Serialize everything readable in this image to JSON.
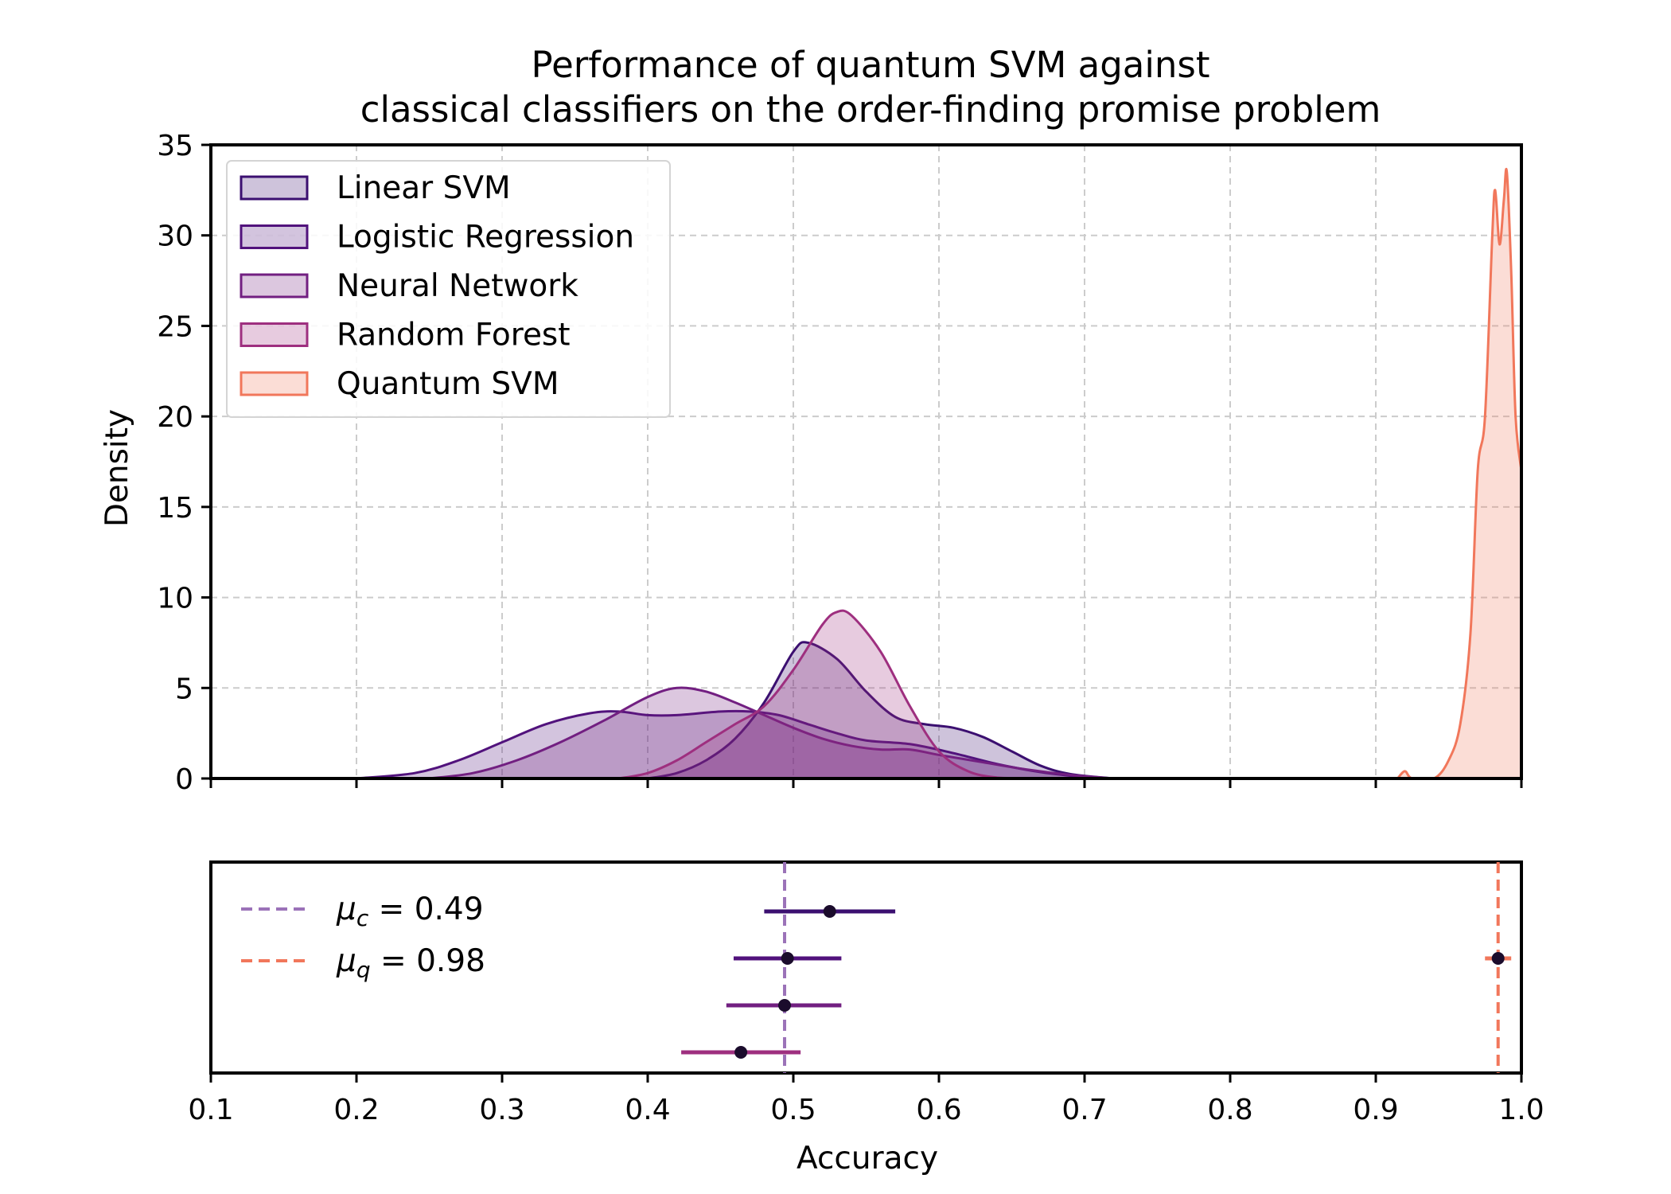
{
  "chart_data": [
    {
      "type": "area",
      "title_lines": [
        "Performance of quantum SVM against",
        "classical classifiers on the order-finding promise problem"
      ],
      "ylabel": "Density",
      "xlim": [
        0.1,
        1.0
      ],
      "ylim": [
        0,
        35
      ],
      "yticks": [
        "0",
        "5",
        "10",
        "15",
        "20",
        "25",
        "30",
        "35"
      ],
      "grid": true,
      "legend_position": "top-left",
      "series": [
        {
          "name": "Linear SVM",
          "color": "#3b0f70",
          "points": [
            [
              0.4,
              0
            ],
            [
              0.42,
              0.3
            ],
            [
              0.44,
              1.0
            ],
            [
              0.46,
              2.2
            ],
            [
              0.48,
              4.2
            ],
            [
              0.5,
              7.0
            ],
            [
              0.51,
              7.5
            ],
            [
              0.53,
              6.6
            ],
            [
              0.55,
              4.8
            ],
            [
              0.57,
              3.4
            ],
            [
              0.59,
              3.0
            ],
            [
              0.61,
              2.8
            ],
            [
              0.63,
              2.3
            ],
            [
              0.65,
              1.5
            ],
            [
              0.67,
              0.7
            ],
            [
              0.69,
              0.25
            ],
            [
              0.72,
              0
            ]
          ]
        },
        {
          "name": "Logistic Regression",
          "color": "#51127c",
          "points": [
            [
              0.2,
              0
            ],
            [
              0.24,
              0.3
            ],
            [
              0.27,
              1.0
            ],
            [
              0.3,
              2.0
            ],
            [
              0.33,
              3.0
            ],
            [
              0.36,
              3.6
            ],
            [
              0.38,
              3.7
            ],
            [
              0.4,
              3.5
            ],
            [
              0.42,
              3.5
            ],
            [
              0.45,
              3.7
            ],
            [
              0.47,
              3.7
            ],
            [
              0.49,
              3.5
            ],
            [
              0.51,
              3.0
            ],
            [
              0.53,
              2.5
            ],
            [
              0.55,
              2.1
            ],
            [
              0.58,
              1.9
            ],
            [
              0.61,
              1.4
            ],
            [
              0.64,
              0.8
            ],
            [
              0.67,
              0.35
            ],
            [
              0.7,
              0.08
            ],
            [
              0.72,
              0
            ]
          ]
        },
        {
          "name": "Neural Network",
          "color": "#721f81",
          "points": [
            [
              0.25,
              0
            ],
            [
              0.28,
              0.3
            ],
            [
              0.31,
              1.0
            ],
            [
              0.34,
              2.0
            ],
            [
              0.37,
              3.2
            ],
            [
              0.4,
              4.5
            ],
            [
              0.42,
              5.0
            ],
            [
              0.44,
              4.8
            ],
            [
              0.46,
              4.2
            ],
            [
              0.48,
              3.5
            ],
            [
              0.5,
              2.8
            ],
            [
              0.52,
              2.2
            ],
            [
              0.54,
              1.8
            ],
            [
              0.56,
              1.6
            ],
            [
              0.58,
              1.6
            ],
            [
              0.6,
              1.3
            ],
            [
              0.63,
              0.9
            ],
            [
              0.66,
              0.5
            ],
            [
              0.69,
              0.2
            ],
            [
              0.72,
              0
            ]
          ]
        },
        {
          "name": "Random Forest",
          "color": "#9e2f7f",
          "points": [
            [
              0.38,
              0
            ],
            [
              0.4,
              0.3
            ],
            [
              0.42,
              1.0
            ],
            [
              0.44,
              2.0
            ],
            [
              0.46,
              3.0
            ],
            [
              0.48,
              4.0
            ],
            [
              0.5,
              6.0
            ],
            [
              0.52,
              8.5
            ],
            [
              0.53,
              9.2
            ],
            [
              0.54,
              9.0
            ],
            [
              0.56,
              7.0
            ],
            [
              0.58,
              4.0
            ],
            [
              0.6,
              1.5
            ],
            [
              0.62,
              0.4
            ],
            [
              0.64,
              0.05
            ],
            [
              0.66,
              0
            ]
          ]
        },
        {
          "name": "Quantum SVM",
          "color": "#f1775b",
          "points": [
            [
              0.915,
              0
            ],
            [
              0.92,
              0.4
            ],
            [
              0.925,
              0
            ],
            [
              0.94,
              0
            ],
            [
              0.95,
              1.0
            ],
            [
              0.958,
              3.0
            ],
            [
              0.965,
              8.0
            ],
            [
              0.97,
              17.0
            ],
            [
              0.975,
              20.0
            ],
            [
              0.98,
              30.0
            ],
            [
              0.982,
              32.5
            ],
            [
              0.985,
              29.5
            ],
            [
              0.988,
              32.0
            ],
            [
              0.99,
              33.5
            ],
            [
              0.993,
              28.0
            ],
            [
              0.996,
              20.0
            ],
            [
              1.0,
              17.0
            ]
          ]
        }
      ]
    },
    {
      "type": "scatter",
      "subtype": "errorbar",
      "xlabel": "Accuracy",
      "xlim": [
        0.1,
        1.0
      ],
      "xticks": [
        "0.1",
        "0.2",
        "0.3",
        "0.4",
        "0.5",
        "0.6",
        "0.7",
        "0.8",
        "0.9",
        "1.0"
      ],
      "legend_position": "top-left",
      "reference_lines": [
        {
          "value": 0.494,
          "label_text": "= 0.49",
          "symbol": "μ",
          "sub": "c",
          "color": "#9b72b8"
        },
        {
          "value": 0.984,
          "label_text": "= 0.98",
          "symbol": "μ",
          "sub": "q",
          "color": "#f1775b"
        }
      ],
      "points": [
        {
          "series": "Linear SVM",
          "mean": 0.525,
          "low": 0.48,
          "high": 0.57,
          "color": "#3b0f70"
        },
        {
          "series": "Logistic Regression",
          "mean": 0.496,
          "low": 0.459,
          "high": 0.533,
          "color": "#51127c"
        },
        {
          "series": "Neural Network",
          "mean": 0.494,
          "low": 0.454,
          "high": 0.533,
          "color": "#721f81"
        },
        {
          "series": "Random Forest",
          "mean": 0.464,
          "low": 0.423,
          "high": 0.505,
          "color": "#9e2f7f"
        },
        {
          "series": "Quantum SVM",
          "mean": 0.984,
          "low": 0.975,
          "high": 0.993,
          "color": "#f1775b"
        }
      ]
    }
  ]
}
